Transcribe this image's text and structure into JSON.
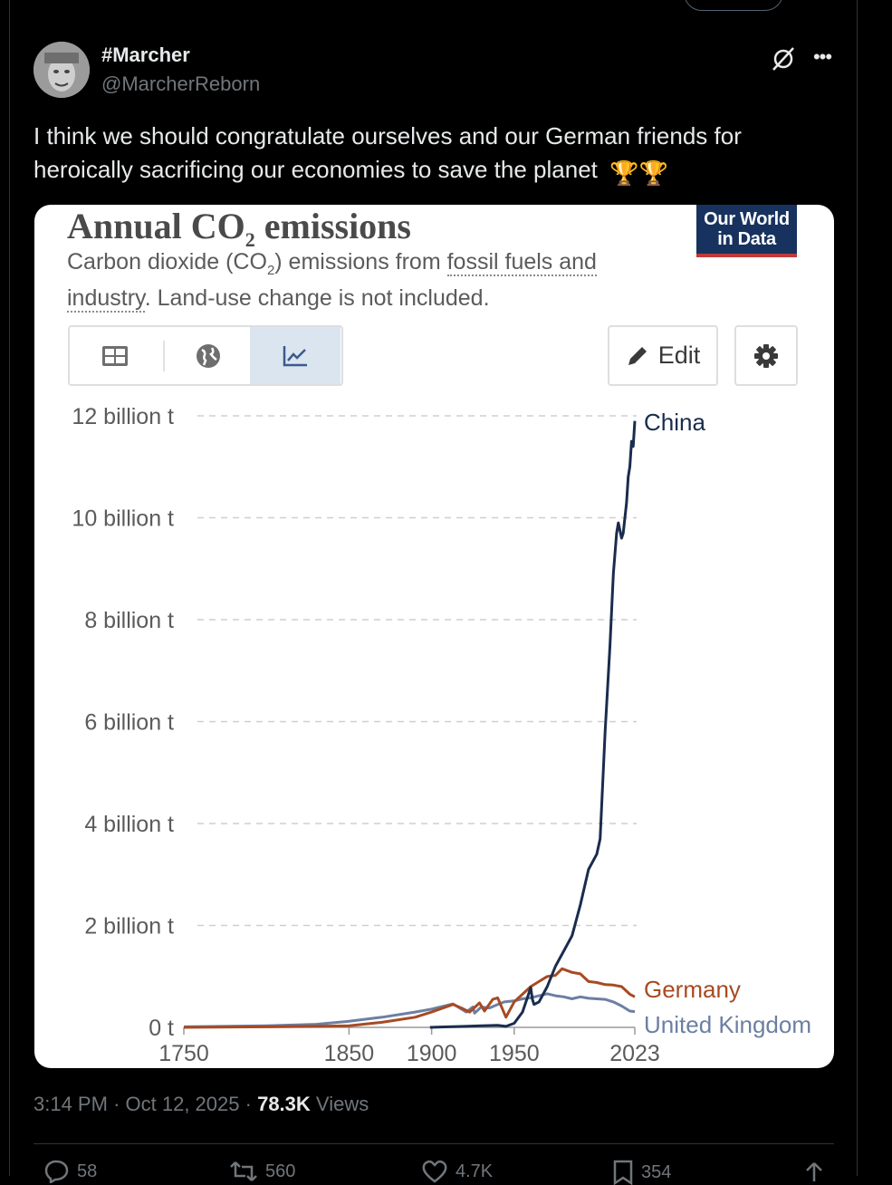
{
  "post": {
    "display_name": "#Marcher",
    "handle": "@MarcherReborn",
    "text": "I think we should congratulate ourselves and our German friends for heroically sacrificing our economies to save the planet",
    "emoji": "🏆🏆",
    "time": "3:14 PM",
    "date": "Oct 12, 2025",
    "views_count": "78.3K",
    "views_label": "Views",
    "separator": "·"
  },
  "actions": {
    "replies": "58",
    "reposts": "560",
    "likes": "4.7K",
    "bookmarks": "354"
  },
  "media": {
    "title_main": "Annual CO",
    "title_sub": "2",
    "title_end": " emissions",
    "subtitle_a": "Carbon dioxide (CO",
    "subtitle_sub": "2",
    "subtitle_b": ") emissions from ",
    "subtitle_link": "fossil fuels and industry",
    "subtitle_c": ". Land-use change is not included.",
    "logo_line1": "Our World",
    "logo_line2": "in Data",
    "edit_label": "Edit"
  },
  "chart_data": {
    "type": "line",
    "x_ticks": [
      "1750",
      "1850",
      "1900",
      "1950",
      "2023"
    ],
    "y_ticks": [
      "0 t",
      "2 billion t",
      "4 billion t",
      "6 billion t",
      "8 billion t",
      "10 billion t",
      "12 billion t"
    ],
    "xlim": [
      1750,
      2023
    ],
    "ylim": [
      0,
      12
    ],
    "grid": "horizontal dashed",
    "colors": {
      "China": "#1a2c4e",
      "Germany": "#a84a23",
      "United Kingdom": "#6c7fa3"
    },
    "series": [
      {
        "name": "China",
        "points": [
          [
            1899,
            0.0
          ],
          [
            1910,
            0.01
          ],
          [
            1920,
            0.02
          ],
          [
            1930,
            0.03
          ],
          [
            1940,
            0.04
          ],
          [
            1945,
            0.02
          ],
          [
            1950,
            0.08
          ],
          [
            1955,
            0.3
          ],
          [
            1960,
            0.78
          ],
          [
            1961,
            0.55
          ],
          [
            1962,
            0.45
          ],
          [
            1965,
            0.5
          ],
          [
            1970,
            0.8
          ],
          [
            1975,
            1.2
          ],
          [
            1980,
            1.5
          ],
          [
            1985,
            1.8
          ],
          [
            1990,
            2.4
          ],
          [
            1995,
            3.1
          ],
          [
            2000,
            3.4
          ],
          [
            2002,
            3.7
          ],
          [
            2005,
            5.8
          ],
          [
            2008,
            7.5
          ],
          [
            2010,
            8.9
          ],
          [
            2012,
            9.7
          ],
          [
            2013,
            9.9
          ],
          [
            2015,
            9.6
          ],
          [
            2016,
            9.7
          ],
          [
            2018,
            10.3
          ],
          [
            2019,
            10.8
          ],
          [
            2020,
            11.0
          ],
          [
            2021,
            11.5
          ],
          [
            2022,
            11.4
          ],
          [
            2023,
            11.9
          ]
        ]
      },
      {
        "name": "Germany",
        "points": [
          [
            1750,
            0.0
          ],
          [
            1800,
            0.01
          ],
          [
            1850,
            0.03
          ],
          [
            1870,
            0.1
          ],
          [
            1890,
            0.2
          ],
          [
            1900,
            0.3
          ],
          [
            1913,
            0.45
          ],
          [
            1918,
            0.38
          ],
          [
            1923,
            0.3
          ],
          [
            1929,
            0.48
          ],
          [
            1932,
            0.32
          ],
          [
            1937,
            0.55
          ],
          [
            1940,
            0.58
          ],
          [
            1945,
            0.2
          ],
          [
            1950,
            0.5
          ],
          [
            1955,
            0.65
          ],
          [
            1960,
            0.8
          ],
          [
            1965,
            0.9
          ],
          [
            1970,
            1.0
          ],
          [
            1975,
            1.02
          ],
          [
            1979,
            1.15
          ],
          [
            1985,
            1.08
          ],
          [
            1990,
            1.05
          ],
          [
            1995,
            0.9
          ],
          [
            2000,
            0.88
          ],
          [
            2005,
            0.84
          ],
          [
            2010,
            0.83
          ],
          [
            2015,
            0.8
          ],
          [
            2020,
            0.65
          ],
          [
            2023,
            0.6
          ]
        ]
      },
      {
        "name": "United Kingdom",
        "points": [
          [
            1750,
            0.01
          ],
          [
            1800,
            0.03
          ],
          [
            1830,
            0.06
          ],
          [
            1850,
            0.12
          ],
          [
            1870,
            0.2
          ],
          [
            1890,
            0.3
          ],
          [
            1900,
            0.36
          ],
          [
            1913,
            0.46
          ],
          [
            1921,
            0.3
          ],
          [
            1925,
            0.4
          ],
          [
            1926,
            0.28
          ],
          [
            1930,
            0.4
          ],
          [
            1935,
            0.38
          ],
          [
            1940,
            0.45
          ],
          [
            1944,
            0.5
          ],
          [
            1950,
            0.52
          ],
          [
            1955,
            0.56
          ],
          [
            1960,
            0.58
          ],
          [
            1965,
            0.62
          ],
          [
            1970,
            0.66
          ],
          [
            1975,
            0.62
          ],
          [
            1980,
            0.6
          ],
          [
            1985,
            0.56
          ],
          [
            1990,
            0.6
          ],
          [
            1995,
            0.57
          ],
          [
            2000,
            0.56
          ],
          [
            2005,
            0.55
          ],
          [
            2010,
            0.5
          ],
          [
            2015,
            0.42
          ],
          [
            2020,
            0.32
          ],
          [
            2023,
            0.31
          ]
        ]
      }
    ]
  }
}
